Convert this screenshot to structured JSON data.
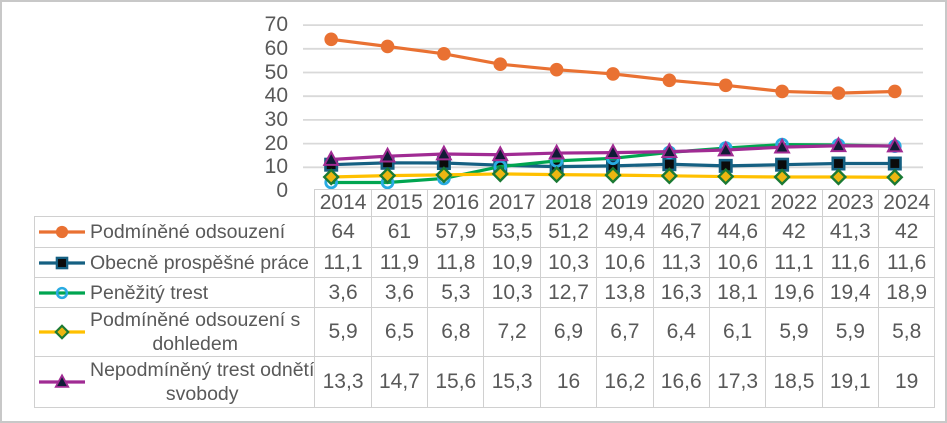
{
  "frame": {
    "background": "#FFFFFF",
    "border_color": "#C8C8C8",
    "grid_color": "#D9D9D9",
    "table_border_color": "#D0D0D0",
    "text_color": "#595959"
  },
  "chart_data": {
    "type": "line",
    "title": "",
    "xlabel": "",
    "ylabel": "",
    "categories": [
      "2014",
      "2015",
      "2016",
      "2017",
      "2018",
      "2019",
      "2020",
      "2021",
      "2022",
      "2023",
      "2024"
    ],
    "ylim": [
      0,
      70
    ],
    "yticks": [
      0,
      10,
      20,
      30,
      40,
      50,
      60,
      70
    ],
    "grid": true,
    "legend_position": "data-table-left",
    "series": [
      {
        "name": "Podmíněné odsouzení",
        "marker": "circle",
        "line_color": "#E97132",
        "marker_fill": "#E97132",
        "marker_stroke": "#E97132",
        "values": [
          64,
          61,
          57.9,
          53.5,
          51.2,
          49.4,
          46.7,
          44.6,
          42,
          41.3,
          42
        ]
      },
      {
        "name": "Obecně prospěšné práce",
        "marker": "square",
        "line_color": "#156082",
        "marker_fill": "#0B0B0B",
        "marker_stroke": "#156082",
        "values": [
          11.1,
          11.9,
          11.8,
          10.9,
          10.3,
          10.6,
          11.3,
          10.6,
          11.1,
          11.6,
          11.6
        ]
      },
      {
        "name": "Peněžitý trest",
        "marker": "open-circle",
        "line_color": "#00A550",
        "marker_fill": "none",
        "marker_stroke": "#29ABE2",
        "values": [
          3.6,
          3.6,
          5.3,
          10.3,
          12.7,
          13.8,
          16.3,
          18.1,
          19.6,
          19.4,
          18.9
        ]
      },
      {
        "name": "Podmíněné odsouzení s dohledem",
        "marker": "diamond",
        "line_color": "#FFC000",
        "marker_fill": "#EDB611",
        "marker_stroke": "#1B7A34",
        "values": [
          5.9,
          6.5,
          6.8,
          7.2,
          6.9,
          6.7,
          6.4,
          6.1,
          5.9,
          5.9,
          5.8
        ]
      },
      {
        "name": "Nepodmíněný trest odnětí svobody",
        "marker": "triangle",
        "line_color": "#A02B93",
        "marker_fill": "#101C36",
        "marker_stroke": "#A02B93",
        "values": [
          13.3,
          14.7,
          15.6,
          15.3,
          16,
          16.2,
          16.6,
          17.3,
          18.5,
          19.1,
          19
        ]
      }
    ]
  },
  "table": {
    "corner": "",
    "columns": [
      "2014",
      "2015",
      "2016",
      "2017",
      "2018",
      "2019",
      "2020",
      "2021",
      "2022",
      "2023",
      "2024"
    ],
    "rows": [
      {
        "label": "Podmíněné odsouzení",
        "label_lines": [
          "Podmíněné odsouzení"
        ],
        "values": [
          "64",
          "61",
          "57,9",
          "53,5",
          "51,2",
          "49,4",
          "46,7",
          "44,6",
          "42",
          "41,3",
          "42"
        ]
      },
      {
        "label": "Obecně prospěšné práce",
        "label_lines": [
          "Obecně prospěšné práce"
        ],
        "values": [
          "11,1",
          "11,9",
          "11,8",
          "10,9",
          "10,3",
          "10,6",
          "11,3",
          "10,6",
          "11,1",
          "11,6",
          "11,6"
        ]
      },
      {
        "label": "Peněžitý trest",
        "label_lines": [
          "Peněžitý trest"
        ],
        "values": [
          "3,6",
          "3,6",
          "5,3",
          "10,3",
          "12,7",
          "13,8",
          "16,3",
          "18,1",
          "19,6",
          "19,4",
          "18,9"
        ]
      },
      {
        "label": "Podmíněné odsouzení s dohledem",
        "label_lines": [
          "Podmíněné odsouzení s",
          "dohledem"
        ],
        "values": [
          "5,9",
          "6,5",
          "6,8",
          "7,2",
          "6,9",
          "6,7",
          "6,4",
          "6,1",
          "5,9",
          "5,9",
          "5,8"
        ]
      },
      {
        "label": "Nepodmíněný trest odnětí svobody",
        "label_lines": [
          "Nepodmíněný trest odnětí",
          "svobody"
        ],
        "values": [
          "13,3",
          "14,7",
          "15,6",
          "15,3",
          "16",
          "16,2",
          "16,6",
          "17,3",
          "18,5",
          "19,1",
          "19"
        ]
      }
    ]
  }
}
